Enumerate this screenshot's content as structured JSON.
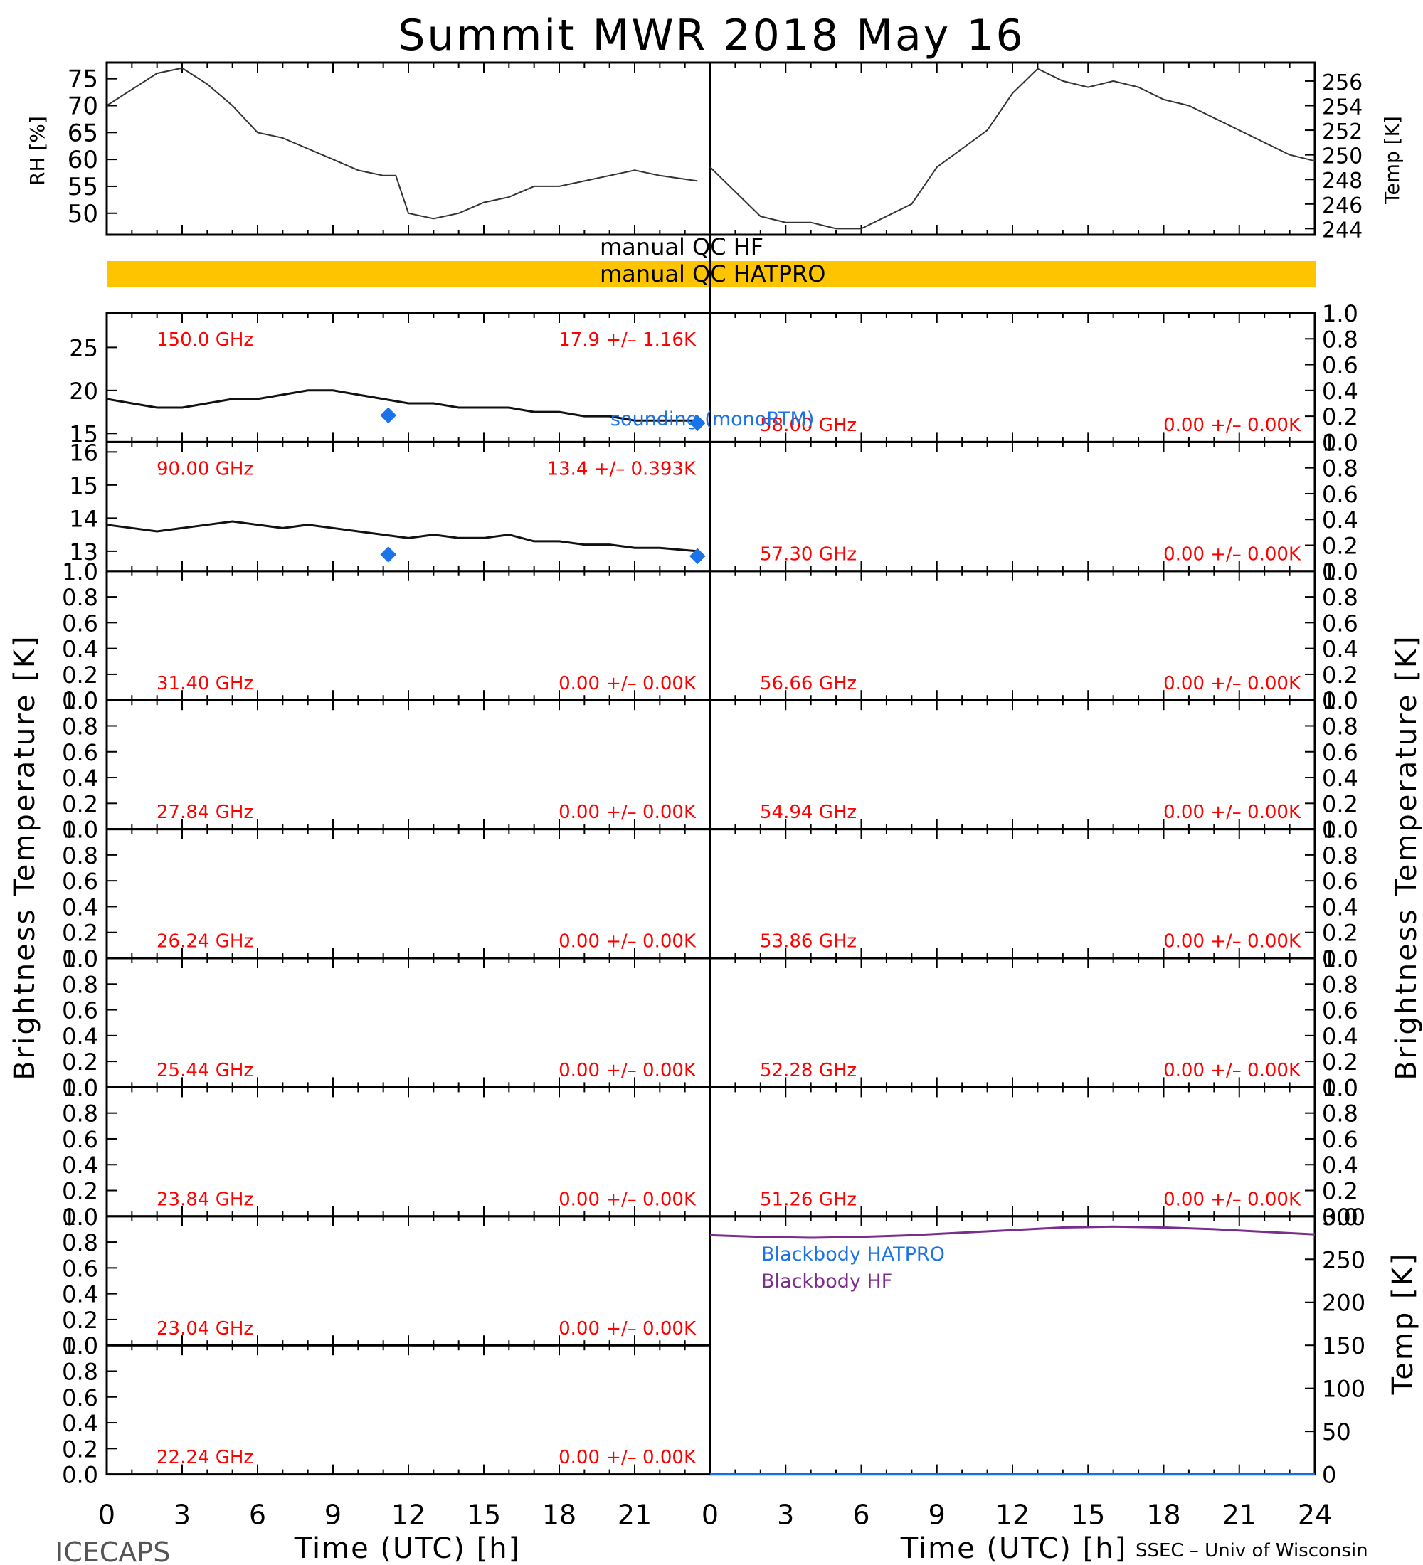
{
  "title": "Summit MWR 2018 May 16",
  "footer": {
    "left": "ICECAPS",
    "right": "SSEC – Univ of Wisconsin"
  },
  "colors": {
    "text": "#000000",
    "red": "#ff0000",
    "blue": "#1a73e8",
    "purple": "#7b2d8e",
    "orange": "#ffc400"
  },
  "qc_flags": {
    "hf": "manual QC HF",
    "hatpro": "manual QC HATPRO"
  },
  "chart_data": [
    {
      "id": "met",
      "type": "line",
      "xlabel": "",
      "xlim": [
        0,
        24
      ],
      "ylabel_left": "RH [%]",
      "ylim_left": [
        46,
        78
      ],
      "yticks_left": [
        50,
        55,
        60,
        65,
        70,
        75
      ],
      "ylabel_right": "Temp [K]",
      "ylim_right": [
        243.5,
        257.5
      ],
      "yticks_right": [
        244,
        246,
        248,
        250,
        252,
        254,
        256
      ],
      "series": [
        {
          "axis": "left",
          "x": [
            0,
            1,
            2,
            3,
            4,
            5,
            6,
            7,
            8,
            9,
            10,
            11,
            11.5,
            12,
            13,
            14,
            15,
            16,
            17,
            18,
            19,
            20,
            21,
            22,
            23.5
          ],
          "y": [
            70,
            73,
            76,
            77,
            74,
            70,
            65,
            64,
            62,
            60,
            58,
            57,
            57,
            50,
            49,
            50,
            52,
            53,
            55,
            55,
            56,
            57,
            58,
            57,
            56
          ]
        }
      ],
      "series_right": [
        {
          "axis": "right",
          "x": [
            0,
            1,
            2,
            3,
            4,
            5,
            6,
            7,
            8,
            9,
            10,
            11,
            12,
            13,
            14,
            15,
            16,
            17,
            18,
            19,
            20,
            21,
            22,
            23,
            24
          ],
          "y": [
            249,
            247,
            245,
            244.5,
            244.5,
            244,
            244,
            245,
            246,
            249,
            250.5,
            252,
            255,
            257,
            256,
            255.5,
            256,
            255.5,
            254.5,
            254,
            253,
            252,
            251,
            250,
            249.5
          ]
        }
      ]
    },
    {
      "id": "tb-left",
      "type": "line",
      "xlim": [
        0,
        24
      ],
      "xticks": [
        0,
        3,
        6,
        9,
        12,
        15,
        18,
        21
      ],
      "xlabel": "Time (UTC) [h]",
      "ylabel": "Brightness Temperature [K]",
      "panels": [
        {
          "freq": "150.0 GHz",
          "stat": "17.9 +/– 1.16K",
          "ylim": [
            14,
            29
          ],
          "yticks": [
            15,
            20,
            25
          ],
          "x": [
            0,
            1,
            2,
            3,
            4,
            5,
            6,
            7,
            8,
            9,
            10,
            11,
            12,
            13,
            14,
            15,
            16,
            17,
            18,
            19,
            20,
            21,
            22,
            23.5
          ],
          "y": [
            19,
            18.5,
            18,
            18,
            18.5,
            19,
            19,
            19.5,
            20,
            20,
            19.5,
            19,
            18.5,
            18.5,
            18,
            18,
            18,
            17.5,
            17.5,
            17,
            17,
            16.5,
            16.5,
            16.5
          ],
          "sounding": [
            [
              11.2,
              17.1
            ],
            [
              23.5,
              16.2
            ]
          ],
          "sounding_label": "sounding (monoRTM)"
        },
        {
          "freq": "90.00 GHz",
          "stat": "13.4 +/– 0.393K",
          "ylim": [
            12.4,
            16.3
          ],
          "yticks": [
            13,
            14,
            15,
            16
          ],
          "x": [
            0,
            1,
            2,
            3,
            4,
            5,
            6,
            7,
            8,
            9,
            10,
            11,
            12,
            13,
            14,
            15,
            16,
            17,
            18,
            19,
            20,
            21,
            22,
            23.5
          ],
          "y": [
            13.8,
            13.7,
            13.6,
            13.7,
            13.8,
            13.9,
            13.8,
            13.7,
            13.8,
            13.7,
            13.6,
            13.5,
            13.4,
            13.5,
            13.4,
            13.4,
            13.5,
            13.3,
            13.3,
            13.2,
            13.2,
            13.1,
            13.1,
            13.0
          ],
          "sounding": [
            [
              11.2,
              12.9
            ],
            [
              23.5,
              12.85
            ]
          ]
        },
        {
          "freq": "31.40 GHz",
          "stat": "0.00 +/– 0.00K",
          "ylim": [
            0,
            1
          ],
          "yticks": [
            0,
            0.2,
            0.4,
            0.6,
            0.8,
            1.0
          ]
        },
        {
          "freq": "27.84 GHz",
          "stat": "0.00 +/– 0.00K",
          "ylim": [
            0,
            1
          ],
          "yticks": [
            0,
            0.2,
            0.4,
            0.6,
            0.8,
            1.0
          ]
        },
        {
          "freq": "26.24 GHz",
          "stat": "0.00 +/– 0.00K",
          "ylim": [
            0,
            1
          ],
          "yticks": [
            0,
            0.2,
            0.4,
            0.6,
            0.8,
            1.0
          ]
        },
        {
          "freq": "25.44 GHz",
          "stat": "0.00 +/– 0.00K",
          "ylim": [
            0,
            1
          ],
          "yticks": [
            0,
            0.2,
            0.4,
            0.6,
            0.8,
            1.0
          ]
        },
        {
          "freq": "23.84 GHz",
          "stat": "0.00 +/– 0.00K",
          "ylim": [
            0,
            1
          ],
          "yticks": [
            0,
            0.2,
            0.4,
            0.6,
            0.8,
            1.0
          ]
        },
        {
          "freq": "23.04 GHz",
          "stat": "0.00 +/– 0.00K",
          "ylim": [
            0,
            1
          ],
          "yticks": [
            0,
            0.2,
            0.4,
            0.6,
            0.8,
            1.0
          ]
        },
        {
          "freq": "22.24 GHz",
          "stat": "0.00 +/– 0.00K",
          "ylim": [
            0,
            1
          ],
          "yticks": [
            0,
            0.2,
            0.4,
            0.6,
            0.8,
            1.0
          ]
        }
      ]
    },
    {
      "id": "tb-right",
      "type": "line",
      "xlim": [
        0,
        24
      ],
      "xticks": [
        0,
        3,
        6,
        9,
        12,
        15,
        18,
        21,
        24
      ],
      "xlabel": "Time (UTC) [h]",
      "ylabel": "Brightness Temperature [K]",
      "panels": [
        {
          "freq": "58.00 GHz",
          "stat": "0.00 +/– 0.00K",
          "ylim": [
            0,
            1
          ],
          "yticks": [
            0,
            0.2,
            0.4,
            0.6,
            0.8,
            1.0
          ]
        },
        {
          "freq": "57.30 GHz",
          "stat": "0.00 +/– 0.00K",
          "ylim": [
            0,
            1
          ],
          "yticks": [
            0,
            0.2,
            0.4,
            0.6,
            0.8,
            1.0
          ]
        },
        {
          "freq": "56.66 GHz",
          "stat": "0.00 +/– 0.00K",
          "ylim": [
            0,
            1
          ],
          "yticks": [
            0,
            0.2,
            0.4,
            0.6,
            0.8,
            1.0
          ]
        },
        {
          "freq": "54.94 GHz",
          "stat": "0.00 +/– 0.00K",
          "ylim": [
            0,
            1
          ],
          "yticks": [
            0,
            0.2,
            0.4,
            0.6,
            0.8,
            1.0
          ]
        },
        {
          "freq": "53.86 GHz",
          "stat": "0.00 +/– 0.00K",
          "ylim": [
            0,
            1
          ],
          "yticks": [
            0,
            0.2,
            0.4,
            0.6,
            0.8,
            1.0
          ]
        },
        {
          "freq": "52.28 GHz",
          "stat": "0.00 +/– 0.00K",
          "ylim": [
            0,
            1
          ],
          "yticks": [
            0,
            0.2,
            0.4,
            0.6,
            0.8,
            1.0
          ]
        },
        {
          "freq": "51.26 GHz",
          "stat": "0.00 +/– 0.00K",
          "ylim": [
            0,
            1
          ],
          "yticks": [
            0,
            0.2,
            0.4,
            0.6,
            0.8,
            1.0
          ]
        }
      ]
    },
    {
      "id": "blackbody",
      "type": "line",
      "xlim": [
        0,
        24
      ],
      "ylim": [
        0,
        300
      ],
      "yticks": [
        0,
        50,
        100,
        150,
        200,
        250,
        300
      ],
      "ylabel": "Temp [K]",
      "series": [
        {
          "name": "Blackbody HATPRO",
          "color": "#1a73e8",
          "x": [
            0,
            24
          ],
          "y": [
            0,
            0
          ]
        },
        {
          "name": "Blackbody HF",
          "color": "#7b2d8e",
          "x": [
            0,
            2,
            4,
            6,
            8,
            10,
            12,
            14,
            16,
            18,
            20,
            22,
            24
          ],
          "y": [
            278,
            276,
            275,
            276,
            278,
            281,
            284,
            287,
            288,
            287,
            285,
            282,
            279
          ]
        }
      ]
    }
  ]
}
